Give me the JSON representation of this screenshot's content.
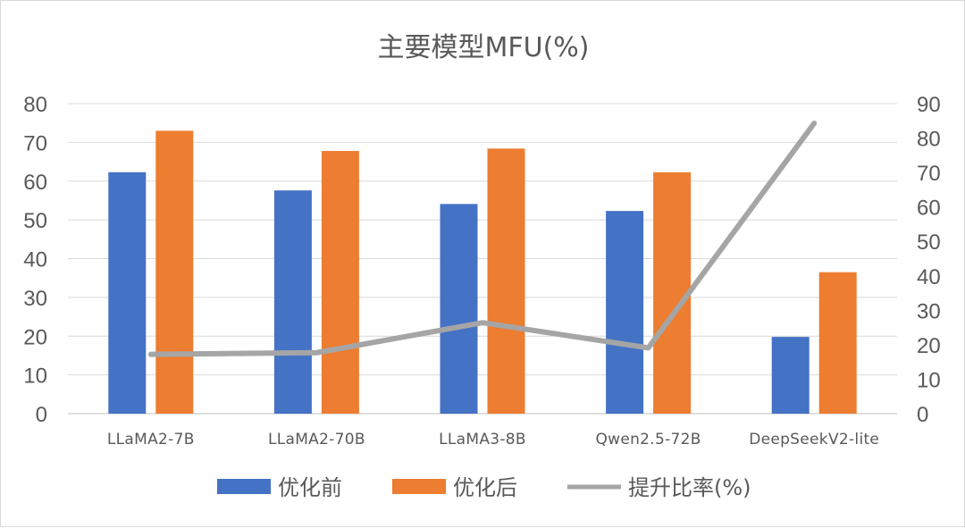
{
  "chart_data": {
    "type": "bar",
    "title": "主要模型MFU(%)",
    "categories": [
      "LLaMA2-7B",
      "LLaMA2-70B",
      "LLaMA3-8B",
      "Qwen2.5-72B",
      "DeepSeekV2-lite"
    ],
    "series": [
      {
        "name": "优化前",
        "type": "bar",
        "axis": "left",
        "color": "#4472C4",
        "values": [
          62.3,
          57.6,
          54.1,
          52.3,
          19.8
        ]
      },
      {
        "name": "优化后",
        "type": "bar",
        "axis": "left",
        "color": "#ED7D31",
        "values": [
          73.0,
          67.8,
          68.4,
          62.3,
          36.5
        ]
      },
      {
        "name": "提升比率(%)",
        "type": "line",
        "axis": "right",
        "color": "#A5A5A5",
        "values": [
          17.2,
          17.7,
          26.4,
          19.1,
          84.3
        ]
      }
    ],
    "left_axis": {
      "min": 0,
      "max": 80,
      "step": 10,
      "ticks": [
        "0",
        "10",
        "20",
        "30",
        "40",
        "50",
        "60",
        "70",
        "80"
      ]
    },
    "right_axis": {
      "min": 0,
      "max": 90,
      "step": 10,
      "ticks": [
        "0",
        "10",
        "20",
        "30",
        "40",
        "50",
        "60",
        "70",
        "80",
        "90"
      ]
    },
    "grid": true,
    "legend_position": "bottom"
  }
}
